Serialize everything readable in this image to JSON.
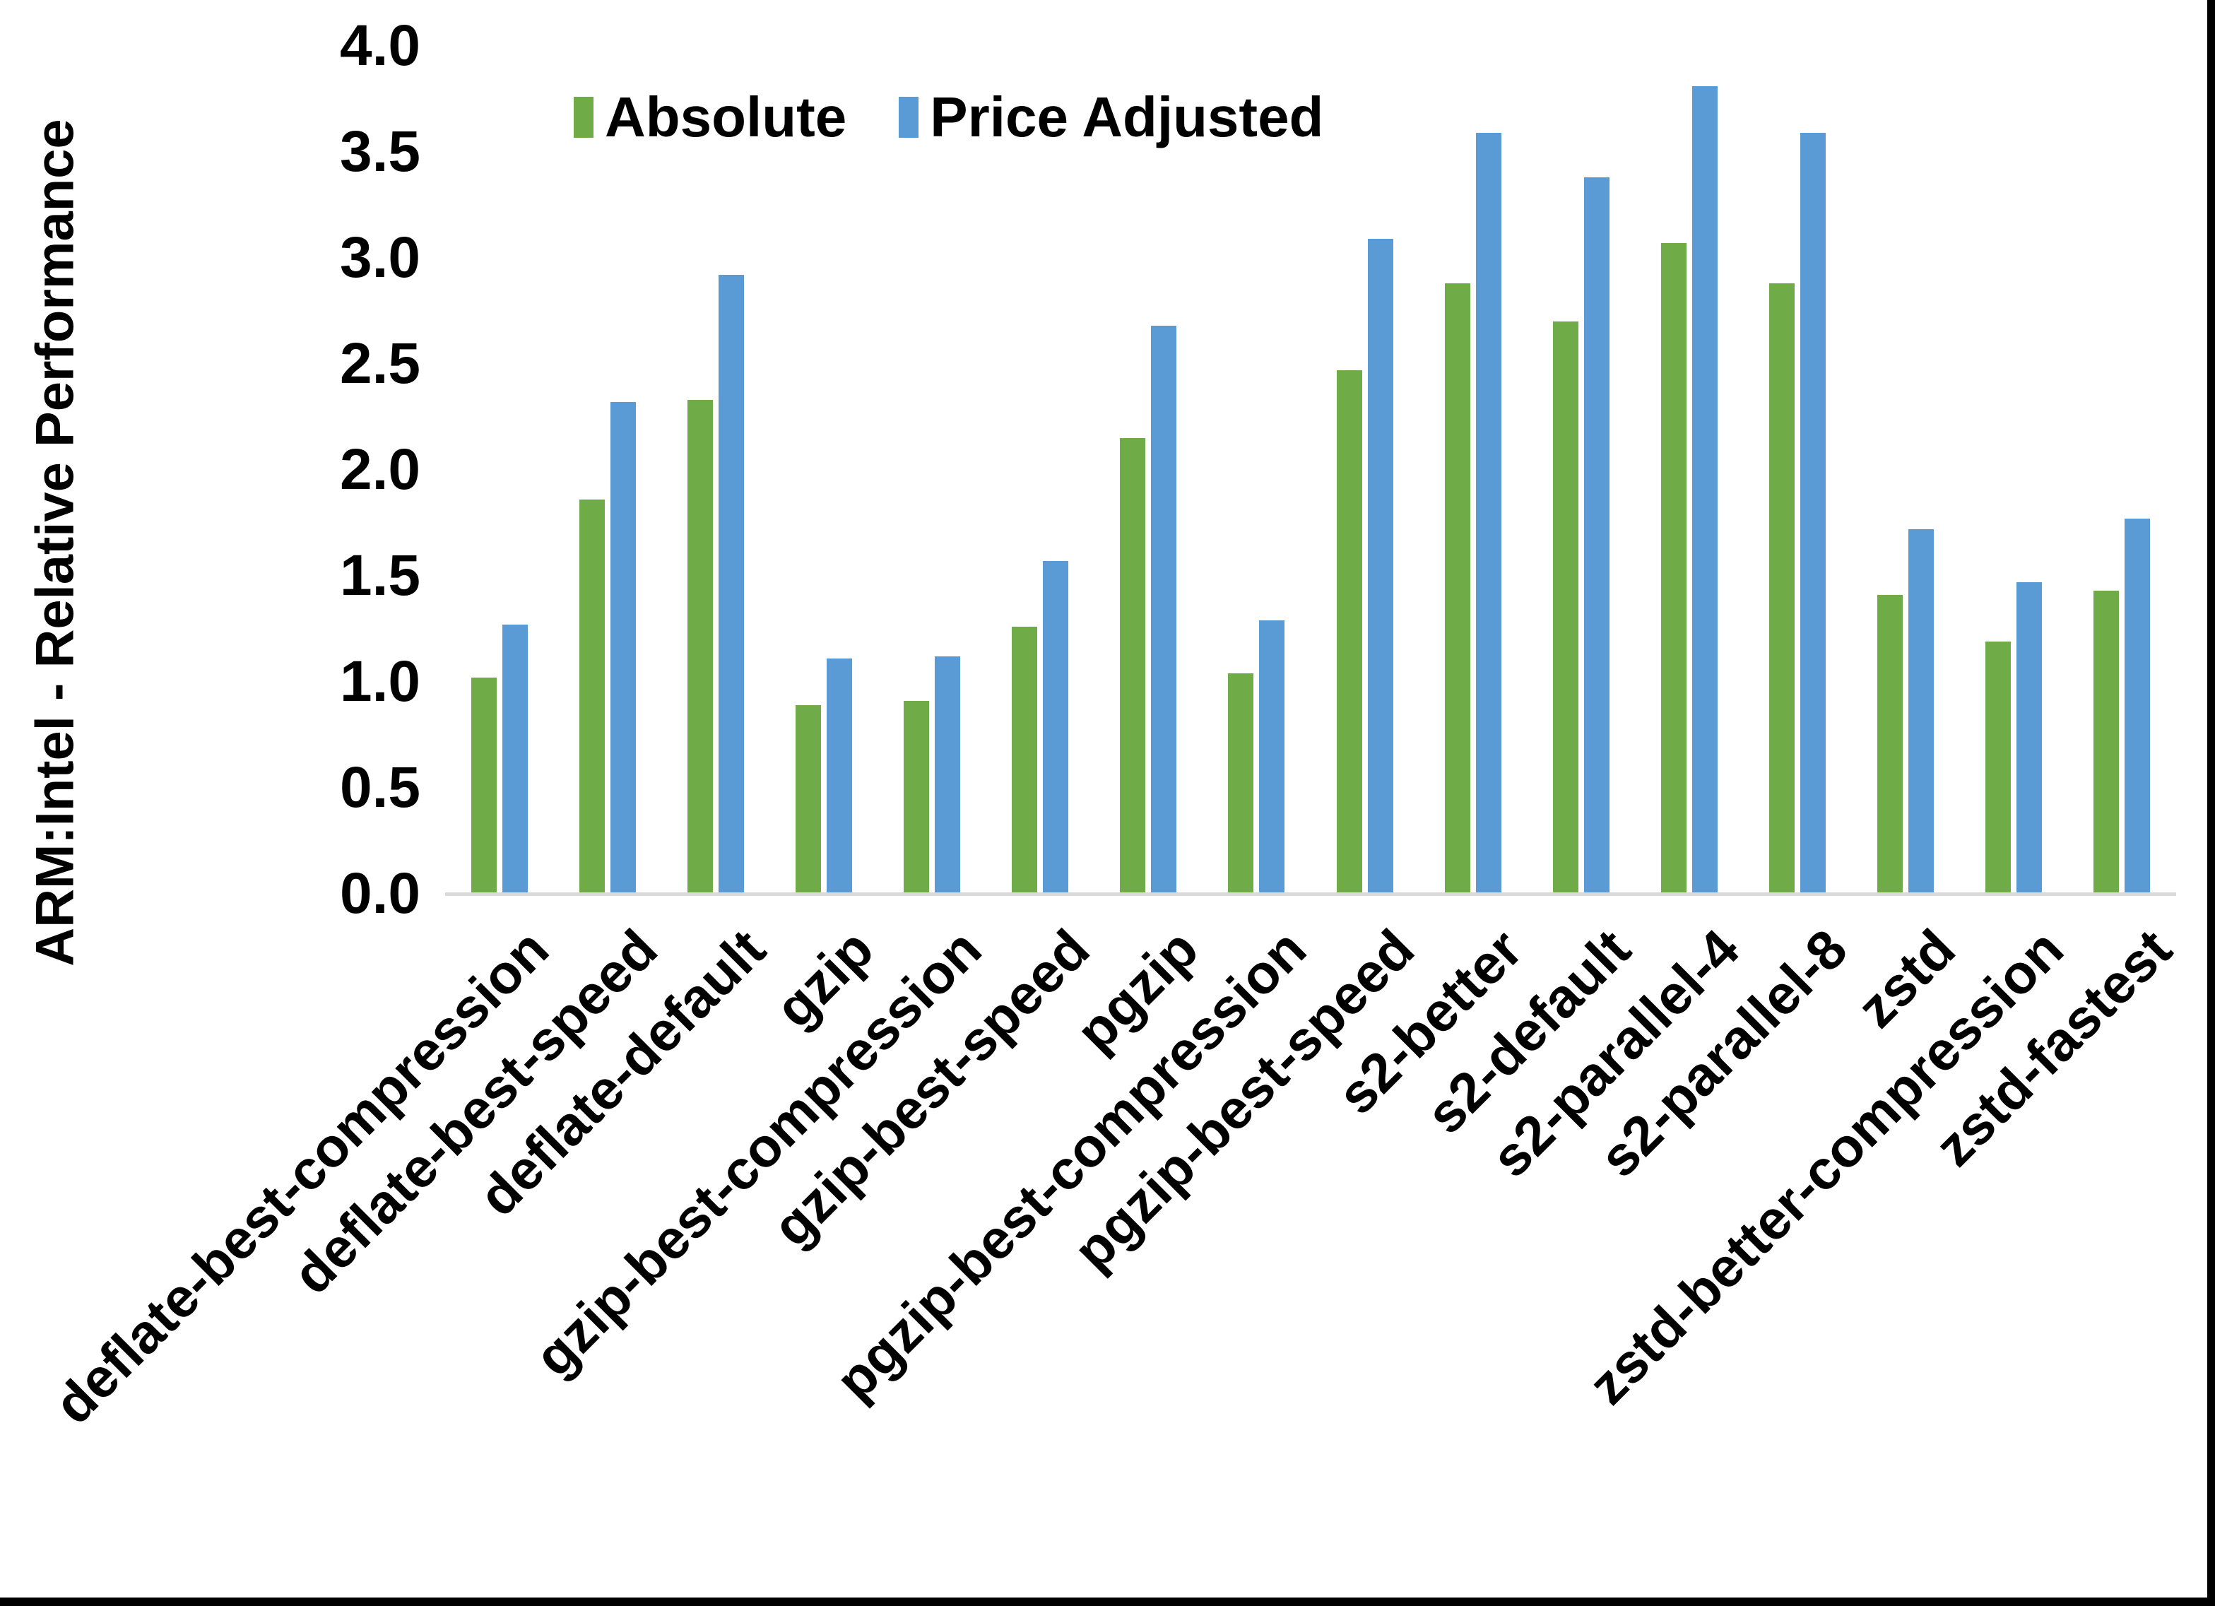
{
  "chart": {
    "y_axis_title": "ARM:Intel - Relative Performance"
  },
  "chart_data": {
    "type": "bar",
    "title": "",
    "xlabel": "",
    "ylabel": "ARM:Intel - Relative Performance",
    "ylim": [
      0.0,
      4.0
    ],
    "ytick_step": 0.5,
    "ytick_labels": [
      "0.0",
      "0.5",
      "1.0",
      "1.5",
      "2.0",
      "2.5",
      "3.0",
      "3.5",
      "4.0"
    ],
    "grid": false,
    "legend_position": "top-center",
    "categories": [
      "deflate-best-compression",
      "deflate-best-speed",
      "deflate-default",
      "gzip",
      "gzip-best-compression",
      "gzip-best-speed",
      "pgzip",
      "pgzip-best-compression",
      "pgzip-best-speed",
      "s2-better",
      "s2-default",
      "s2-parallel-4",
      "s2-parallel-8",
      "zstd",
      "zstd-better-compression",
      "zstd-fastest"
    ],
    "series": [
      {
        "name": "Absolute",
        "color": "#6FAC47",
        "values": [
          1.02,
          1.86,
          2.33,
          0.89,
          0.91,
          1.26,
          2.15,
          1.04,
          2.47,
          2.88,
          2.7,
          3.07,
          2.88,
          1.41,
          1.19,
          1.43
        ]
      },
      {
        "name": "Price Adjusted",
        "color": "#5B9BD5",
        "values": [
          1.27,
          2.32,
          2.92,
          1.11,
          1.12,
          1.57,
          2.68,
          1.29,
          3.09,
          3.59,
          3.38,
          3.81,
          3.59,
          1.72,
          1.47,
          1.77
        ]
      }
    ],
    "axis_line_color": "#D9D9D9",
    "text_color": "#000000",
    "background_color": "#FFFFFF"
  }
}
